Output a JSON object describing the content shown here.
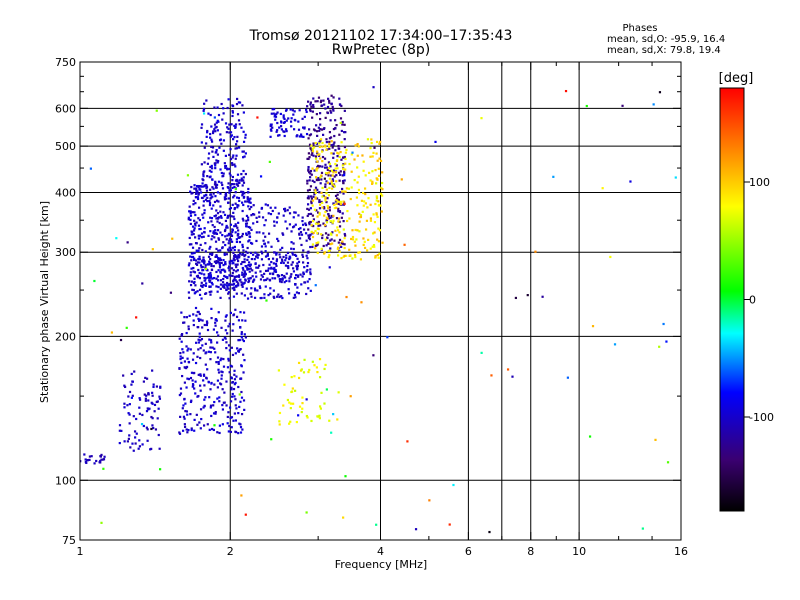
{
  "chart_data": {
    "type": "scatter",
    "title": "Tromsø 20121102 17:34:00–17:35:43",
    "subtitle": "RwPretec (8p)",
    "xlabel": "Frequency [MHz]",
    "ylabel": "Stationary phase Virtual Height [km]",
    "x_scale": "log",
    "y_scale": "log",
    "xlim": [
      1,
      16
    ],
    "ylim": [
      75,
      750
    ],
    "x_ticks": [
      1,
      2,
      4,
      6,
      8,
      10,
      16
    ],
    "x_minor_ticks": [
      3,
      5,
      7,
      9,
      12,
      14
    ],
    "y_ticks": [
      75,
      100,
      200,
      300,
      400,
      500,
      600,
      750
    ],
    "y_minor_ticks": [
      150,
      250,
      350,
      450,
      550,
      650,
      700
    ],
    "grid_x": [
      2,
      4,
      6,
      7,
      8,
      10
    ],
    "grid_y": [
      100,
      200,
      300,
      400,
      500,
      600
    ],
    "grid": true,
    "stats": {
      "header": "Phases",
      "line_o": "mean, sd,O: -95.9, 16.4",
      "line_x": "mean, sd,X: 79.8, 19.4"
    },
    "colorbar": {
      "label": "[deg]",
      "range": [
        -180,
        180
      ],
      "ticks": [
        100,
        0,
        -100
      ],
      "tick_labels": [
        "100",
        "0",
        "-100"
      ]
    },
    "clusters": [
      {
        "id": "low-E",
        "f": [
          1.0,
          1.12
        ],
        "h": [
          108,
          114
        ],
        "n": 22,
        "phase": [
          -115,
          -100
        ]
      },
      {
        "id": "es-1",
        "f": [
          1.2,
          1.45
        ],
        "h": [
          115,
          170
        ],
        "n": 90,
        "phase": [
          -115,
          -95
        ]
      },
      {
        "id": "f1-low",
        "f": [
          1.58,
          2.15
        ],
        "h": [
          125,
          230
        ],
        "n": 330,
        "phase": [
          -110,
          -90
        ]
      },
      {
        "id": "f-low-band",
        "f": [
          1.65,
          2.9
        ],
        "h": [
          240,
          300
        ],
        "n": 260,
        "phase": [
          -110,
          -90
        ]
      },
      {
        "id": "f-main",
        "f": [
          1.65,
          2.2
        ],
        "h": [
          250,
          420
        ],
        "n": 520,
        "phase": [
          -110,
          -90
        ]
      },
      {
        "id": "f-upper",
        "f": [
          1.75,
          2.15
        ],
        "h": [
          420,
          630
        ],
        "n": 170,
        "phase": [
          -110,
          -90
        ]
      },
      {
        "id": "f-mid",
        "f": [
          2.2,
          2.9
        ],
        "h": [
          260,
          380
        ],
        "n": 160,
        "phase": [
          -110,
          -92
        ]
      },
      {
        "id": "f-top-mid",
        "f": [
          2.4,
          2.85
        ],
        "h": [
          520,
          600
        ],
        "n": 70,
        "phase": [
          -105,
          -90
        ]
      },
      {
        "id": "x-trace",
        "f": [
          2.85,
          3.4
        ],
        "h": [
          300,
          640
        ],
        "n": 320,
        "phase": [
          -140,
          -110
        ]
      },
      {
        "id": "x-mode",
        "f": [
          2.9,
          4.05
        ],
        "h": [
          290,
          520
        ],
        "n": 300,
        "phase": [
          70,
          110
        ]
      },
      {
        "id": "x-low",
        "f": [
          2.5,
          3.3
        ],
        "h": [
          130,
          180
        ],
        "n": 55,
        "phase": [
          60,
          95
        ]
      },
      {
        "id": "scatter-bg",
        "f": [
          1.0,
          16.0
        ],
        "h": [
          75,
          700
        ],
        "n": 95,
        "phase": [
          -180,
          180
        ]
      }
    ]
  }
}
